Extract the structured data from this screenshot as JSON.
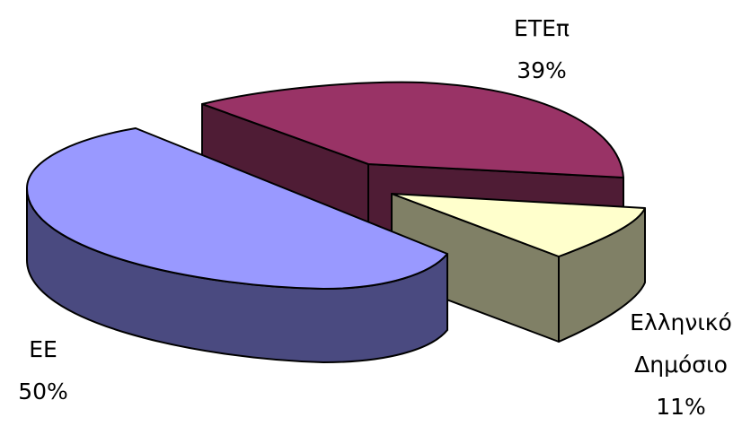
{
  "chart_data": {
    "type": "pie",
    "style": "3d-exploded",
    "title": "",
    "legend": "none",
    "slices": [
      {
        "name": "ΕΕ",
        "label_lines": [
          "ΕΕ"
        ],
        "percent_label": "50%",
        "value": 50,
        "top_color": "#9999ff",
        "side_color": "#4a4a80"
      },
      {
        "name": "ΕΤΕπ",
        "label_lines": [
          "ΕΤΕπ"
        ],
        "percent_label": "39%",
        "value": 39,
        "top_color": "#993366",
        "side_color": "#4f1c35"
      },
      {
        "name": "Ελληνικό Δημόσιο",
        "label_lines": [
          "Ελληνικό",
          "Δημόσιο"
        ],
        "percent_label": "11%",
        "value": 11,
        "top_color": "#ffffcc",
        "side_color": "#808066"
      }
    ]
  }
}
